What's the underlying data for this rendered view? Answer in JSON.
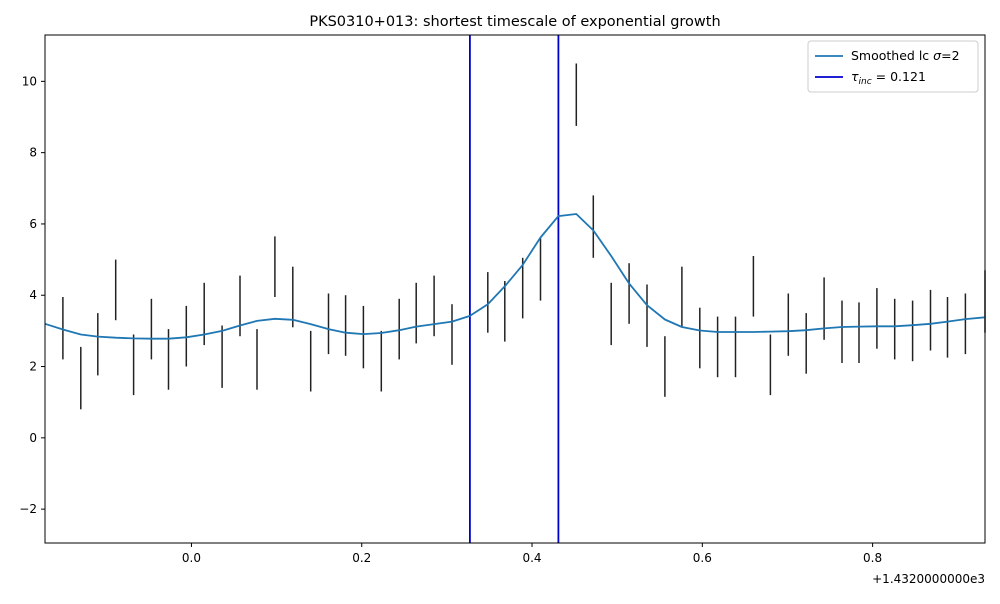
{
  "chart_data": {
    "type": "line",
    "title": "PKS0310+013: shortest timescale of exponential growth",
    "xlabel": "",
    "ylabel": "",
    "x_offset_label": "+1.4320000000e3",
    "xlim": [
      -0.172,
      0.932
    ],
    "ylim": [
      -2.95,
      11.3
    ],
    "x_ticks": [
      {
        "value": 0.0,
        "label": "0.0"
      },
      {
        "value": 0.2,
        "label": "0.2"
      },
      {
        "value": 0.4,
        "label": "0.4"
      },
      {
        "value": 0.6,
        "label": "0.6"
      },
      {
        "value": 0.8,
        "label": "0.8"
      }
    ],
    "y_ticks": [
      {
        "value": -2,
        "label": "−2"
      },
      {
        "value": 0,
        "label": "0"
      },
      {
        "value": 2,
        "label": "2"
      },
      {
        "value": 4,
        "label": "4"
      },
      {
        "value": 6,
        "label": "6"
      },
      {
        "value": 8,
        "label": "8"
      },
      {
        "value": 10,
        "label": "10"
      }
    ],
    "grid": false,
    "legend_position": "top-right",
    "smoothed_series": {
      "name": "Smoothed lc σ=2",
      "color": "#1f77b4",
      "x": [
        -0.172,
        -0.151,
        -0.13,
        -0.11,
        -0.089,
        -0.068,
        -0.047,
        -0.027,
        -0.006,
        0.015,
        0.036,
        0.057,
        0.077,
        0.098,
        0.119,
        0.14,
        0.161,
        0.181,
        0.202,
        0.223,
        0.244,
        0.264,
        0.285,
        0.306,
        0.327,
        0.348,
        0.368,
        0.389,
        0.41,
        0.431,
        0.452,
        0.472,
        0.493,
        0.514,
        0.535,
        0.556,
        0.576,
        0.597,
        0.618,
        0.639,
        0.66,
        0.68,
        0.701,
        0.722,
        0.743,
        0.764,
        0.784,
        0.805,
        0.826,
        0.847,
        0.868,
        0.888,
        0.909,
        0.932
      ],
      "y": [
        3.2,
        3.04,
        2.9,
        2.84,
        2.81,
        2.79,
        2.78,
        2.78,
        2.82,
        2.9,
        3.0,
        3.15,
        3.28,
        3.34,
        3.31,
        3.19,
        3.05,
        2.95,
        2.91,
        2.94,
        3.02,
        3.12,
        3.19,
        3.26,
        3.42,
        3.75,
        4.25,
        4.85,
        5.62,
        6.22,
        6.28,
        5.82,
        5.1,
        4.33,
        3.72,
        3.32,
        3.11,
        3.01,
        2.97,
        2.97,
        2.97,
        2.98,
        2.99,
        3.02,
        3.07,
        3.11,
        3.12,
        3.13,
        3.13,
        3.16,
        3.2,
        3.26,
        3.33,
        3.38
      ]
    },
    "error_bars": {
      "color": "#222222",
      "x": [
        -0.151,
        -0.13,
        -0.11,
        -0.089,
        -0.068,
        -0.047,
        -0.027,
        -0.006,
        0.015,
        0.036,
        0.057,
        0.077,
        0.098,
        0.119,
        0.14,
        0.161,
        0.181,
        0.202,
        0.223,
        0.244,
        0.264,
        0.285,
        0.306,
        0.348,
        0.368,
        0.389,
        0.41,
        0.452,
        0.472,
        0.493,
        0.514,
        0.535,
        0.556,
        0.576,
        0.597,
        0.618,
        0.639,
        0.66,
        0.68,
        0.701,
        0.722,
        0.743,
        0.764,
        0.784,
        0.805,
        0.826,
        0.847,
        0.868,
        0.888,
        0.909,
        0.932
      ],
      "low": [
        2.2,
        0.8,
        1.75,
        3.3,
        1.2,
        2.2,
        1.35,
        2.0,
        2.6,
        1.4,
        2.85,
        1.35,
        3.95,
        3.1,
        1.3,
        2.35,
        2.3,
        1.95,
        1.3,
        2.2,
        2.65,
        2.85,
        2.05,
        2.95,
        2.7,
        3.35,
        3.85,
        8.75,
        5.05,
        2.6,
        3.2,
        2.55,
        1.15,
        3.1,
        1.95,
        1.7,
        1.7,
        3.4,
        1.2,
        2.3,
        1.8,
        2.75,
        2.1,
        2.1,
        2.5,
        2.2,
        2.15,
        2.45,
        2.25,
        2.35,
        2.95
      ],
      "high": [
        3.95,
        2.55,
        3.5,
        5.0,
        2.9,
        3.9,
        3.05,
        3.7,
        4.35,
        3.15,
        4.55,
        3.05,
        5.65,
        4.8,
        3.0,
        4.05,
        4.0,
        3.7,
        3.0,
        3.9,
        4.35,
        4.55,
        3.75,
        4.65,
        4.4,
        5.05,
        5.6,
        10.5,
        6.8,
        4.35,
        4.9,
        4.3,
        2.85,
        4.8,
        3.65,
        3.4,
        3.4,
        5.1,
        2.9,
        4.05,
        3.5,
        4.5,
        3.85,
        3.8,
        4.2,
        3.9,
        3.85,
        4.15,
        3.95,
        4.05,
        4.7
      ]
    },
    "vertical_lines": {
      "name": "τ_inc = 0.121",
      "name_symbol": "τ",
      "name_subscript": "inc",
      "name_rest": " = 0.121",
      "color": "#0000cc",
      "x": [
        0.327,
        0.431
      ]
    },
    "legend_smoothed_prefix": "Smoothed lc ",
    "legend_smoothed_sigma": "σ",
    "legend_smoothed_suffix": "=2"
  }
}
